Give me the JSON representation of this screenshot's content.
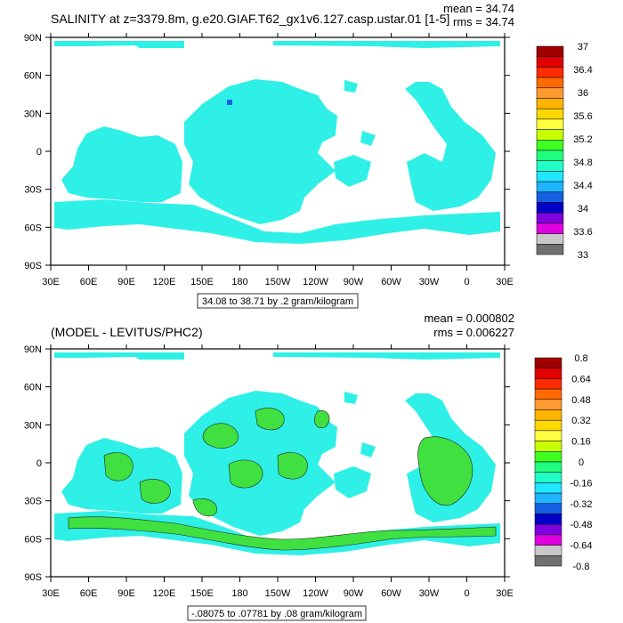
{
  "chart_data": [
    {
      "type": "heatmap",
      "title": "SALINITY at z=3379.8m, g.e20.GIAF.T62_gx1v6.127.casp.ustar.01 [1-5]",
      "stats": {
        "mean": "mean = 34.74",
        "rms": "rms = 34.74"
      },
      "x_ticks": [
        "30E",
        "60E",
        "90E",
        "120E",
        "150E",
        "180",
        "150W",
        "120W",
        "90W",
        "60W",
        "30W",
        "0",
        "30E"
      ],
      "y_ticks": [
        "90N",
        "60N",
        "30N",
        "0",
        "30S",
        "60S",
        "90S"
      ],
      "xlim": [
        30,
        390
      ],
      "ylim": [
        -90,
        90
      ],
      "contour_info": "34.08 to 38.71 by .2 gram/kilogram",
      "colorbar": {
        "labels": [
          "37",
          "36.4",
          "36",
          "35.6",
          "35.2",
          "34.8",
          "34.4",
          "34",
          "33.6",
          "33"
        ],
        "colors": [
          "#a00000",
          "#e00000",
          "#ff2a00",
          "#ff6a00",
          "#ff9a30",
          "#ffb400",
          "#ffd700",
          "#ffff40",
          "#c8ff00",
          "#40ff20",
          "#20ff80",
          "#20ffc8",
          "#20e6ff",
          "#20b4ff",
          "#1460e0",
          "#0000c8",
          "#8000e0",
          "#e000e0",
          "#c8c8c8",
          "#707070"
        ]
      }
    },
    {
      "type": "heatmap",
      "title": "(MODEL - LEVITUS/PHC2)",
      "stats": {
        "mean": "mean = 0.000802",
        "rms": "rms = 0.006227"
      },
      "x_ticks": [
        "30E",
        "60E",
        "90E",
        "120E",
        "150E",
        "180",
        "150W",
        "120W",
        "90W",
        "60W",
        "30W",
        "0",
        "30E"
      ],
      "y_ticks": [
        "90N",
        "60N",
        "30N",
        "0",
        "30S",
        "60S",
        "90S"
      ],
      "xlim": [
        30,
        390
      ],
      "ylim": [
        -90,
        90
      ],
      "contour_info": "-.08075 to .07781 by .08 gram/kilogram",
      "colorbar": {
        "labels": [
          "0.8",
          "0.64",
          "0.48",
          "0.32",
          "0.16",
          "0",
          "-0.16",
          "-0.32",
          "-0.48",
          "-0.64",
          "-0.8"
        ],
        "colors": [
          "#a00000",
          "#e00000",
          "#ff2a00",
          "#ff6a00",
          "#ff9a30",
          "#ffb400",
          "#ffd700",
          "#ffff40",
          "#c8ff00",
          "#40ff20",
          "#20ff80",
          "#20ffc8",
          "#20e6ff",
          "#20b4ff",
          "#1460e0",
          "#0000c8",
          "#8000e0",
          "#e000e0",
          "#c8c8c8",
          "#707070"
        ]
      }
    }
  ]
}
